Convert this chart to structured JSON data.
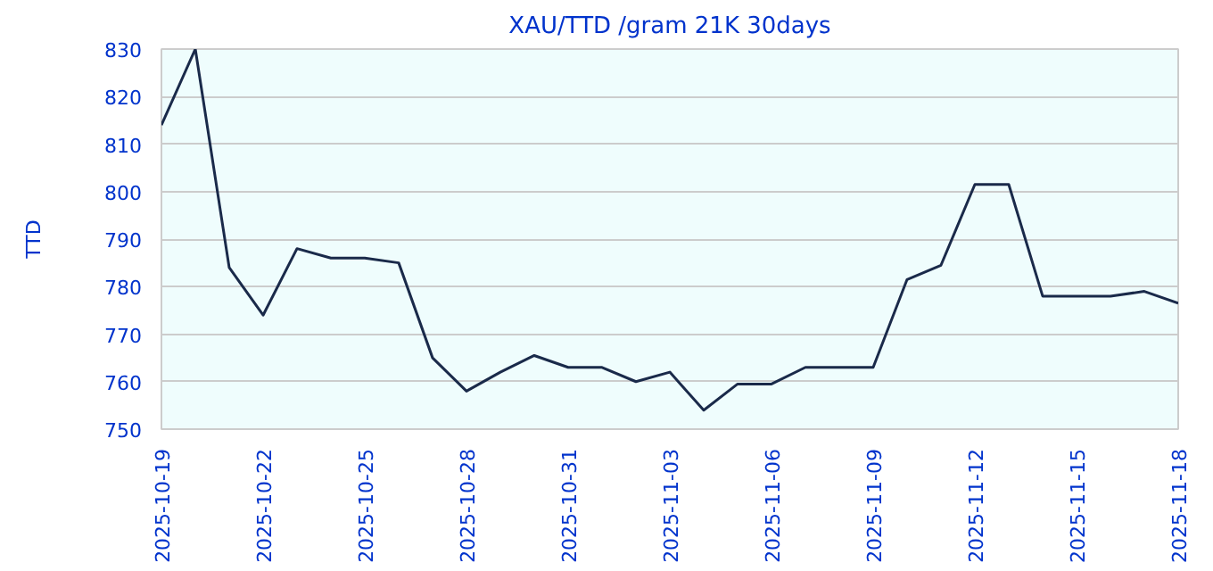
{
  "chart_data": {
    "type": "line",
    "title": "XAU/TTD /gram 21K 30days",
    "ylabel": "TTD",
    "x": [
      "2025-10-19",
      "2025-10-20",
      "2025-10-21",
      "2025-10-22",
      "2025-10-23",
      "2025-10-24",
      "2025-10-25",
      "2025-10-26",
      "2025-10-27",
      "2025-10-28",
      "2025-10-29",
      "2025-10-30",
      "2025-10-31",
      "2025-11-01",
      "2025-11-02",
      "2025-11-03",
      "2025-11-04",
      "2025-11-05",
      "2025-11-06",
      "2025-11-07",
      "2025-11-08",
      "2025-11-09",
      "2025-11-10",
      "2025-11-11",
      "2025-11-12",
      "2025-11-13",
      "2025-11-14",
      "2025-11-15",
      "2025-11-16",
      "2025-11-17",
      "2025-11-18"
    ],
    "series": [
      {
        "color": "#1a2a4a",
        "values": [
          814,
          830,
          784,
          774,
          788,
          786,
          786,
          785,
          765,
          758,
          762,
          765.5,
          763,
          763,
          760,
          762,
          754,
          759.5,
          759.5,
          763,
          763,
          763,
          781.5,
          784.5,
          801.5,
          801.5,
          778,
          778,
          778,
          779,
          776.5
        ]
      }
    ],
    "xlim": [
      "2025-10-19",
      "2025-11-18"
    ],
    "xticks": [
      "2025-10-19",
      "2025-10-22",
      "2025-10-25",
      "2025-10-28",
      "2025-10-31",
      "2025-11-03",
      "2025-11-06",
      "2025-11-09",
      "2025-11-12",
      "2025-11-15",
      "2025-11-18"
    ],
    "ylim": [
      750,
      830
    ],
    "yticks": [
      750,
      760,
      770,
      780,
      790,
      800,
      810,
      820,
      830
    ],
    "grid": "y",
    "marker": "none",
    "line_style": "solid"
  }
}
